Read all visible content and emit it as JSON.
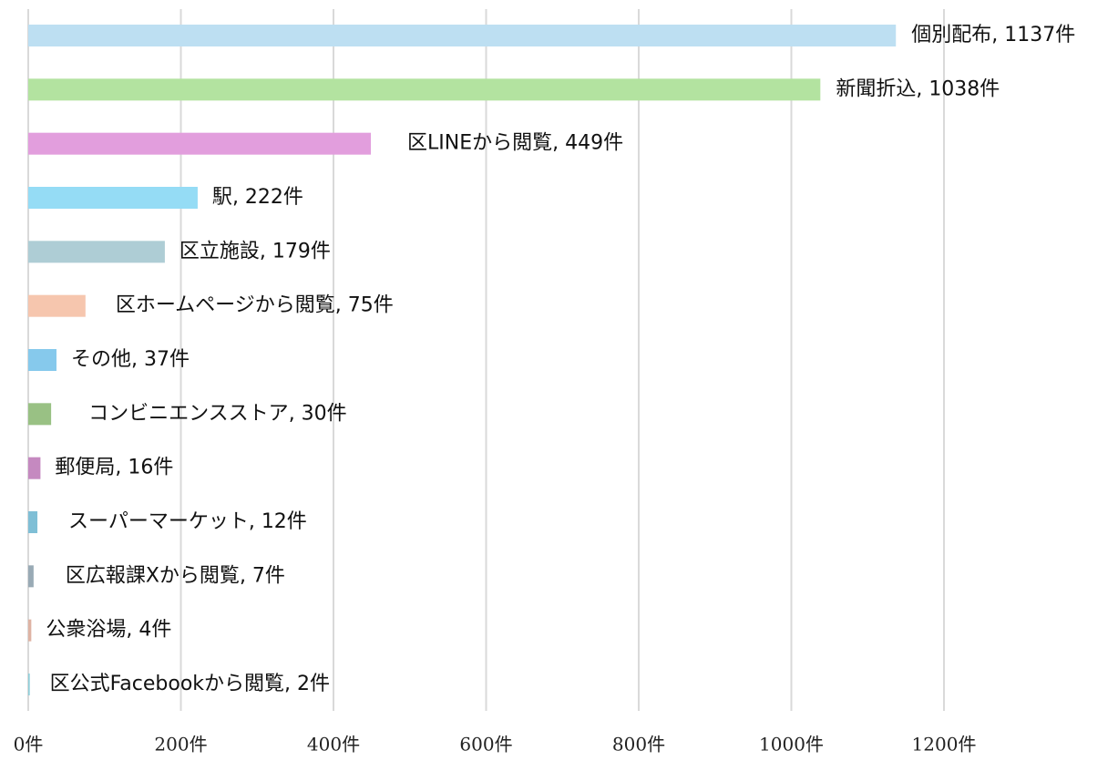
{
  "chart_data": {
    "type": "bar",
    "orientation": "horizontal",
    "categories": [
      "個別配布",
      "新聞折込",
      "区LINEから閲覧",
      "駅",
      "区立施設",
      "区ホームページから閲覧",
      "その他",
      "コンビニエンスストア",
      "郵便局",
      "スーパーマーケット",
      "区広報課Xから閲覧",
      "公衆浴場",
      "区公式Facebookから閲覧"
    ],
    "values": [
      1137,
      1038,
      449,
      222,
      179,
      75,
      37,
      30,
      16,
      12,
      7,
      4,
      2
    ],
    "value_labels": [
      ", 1137件",
      ", 1038件",
      ", 449件",
      ", 222件",
      ", 179件",
      ", 75件",
      ", 37件",
      ", 30件",
      ", 16件",
      ", 12件",
      ", 7件",
      ", 4件",
      ", 2件"
    ],
    "colors": [
      "#bddff2",
      "#b3e3a0",
      "#e29edd",
      "#95dcf5",
      "#aecdd5",
      "#f6c6ae",
      "#86c9ec",
      "#99c184",
      "#c589c0",
      "#7fbfd6",
      "#99aab5",
      "#dfb3a4",
      "#8fcfd9"
    ],
    "xlim": [
      0,
      1200
    ],
    "xticks": [
      {
        "value": 0,
        "label": "0件"
      },
      {
        "value": 200,
        "label": "200件"
      },
      {
        "value": 400,
        "label": "400件"
      },
      {
        "value": 600,
        "label": "600件"
      },
      {
        "value": 800,
        "label": "800件"
      },
      {
        "value": 1000,
        "label": "1000件"
      },
      {
        "value": 1200,
        "label": "1200件"
      }
    ],
    "grid": true
  }
}
